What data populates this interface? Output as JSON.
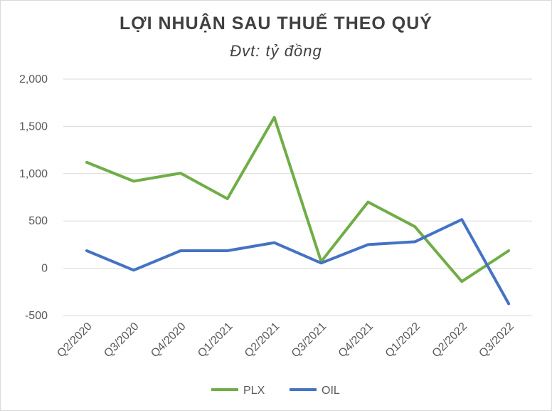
{
  "chart_data": {
    "type": "line",
    "title": "LỢI NHUẬN SAU THUẾ THEO QUÝ",
    "subtitle": "Đvt: tỷ đồng",
    "categories": [
      "Q2/2020",
      "Q3/2020",
      "Q4/2020",
      "Q1/2021",
      "Q2/2021",
      "Q3/2021",
      "Q4/2021",
      "Q1/2022",
      "Q2/2022",
      "Q3/2022"
    ],
    "series": [
      {
        "name": "PLX",
        "color": "#70ad47",
        "values": [
          1120,
          920,
          1005,
          735,
          1595,
          70,
          700,
          440,
          -140,
          185
        ]
      },
      {
        "name": "OIL",
        "color": "#4472c4",
        "values": [
          185,
          -20,
          185,
          185,
          270,
          55,
          250,
          280,
          515,
          -375
        ]
      }
    ],
    "yticks": [
      2000,
      1500,
      1000,
      500,
      0,
      -500
    ],
    "ytick_labels": [
      "2,000",
      "1,500",
      "1,000",
      "500",
      "0",
      "-500"
    ],
    "ylim": [
      -500,
      2000
    ],
    "grid": true,
    "legend_position": "bottom"
  }
}
